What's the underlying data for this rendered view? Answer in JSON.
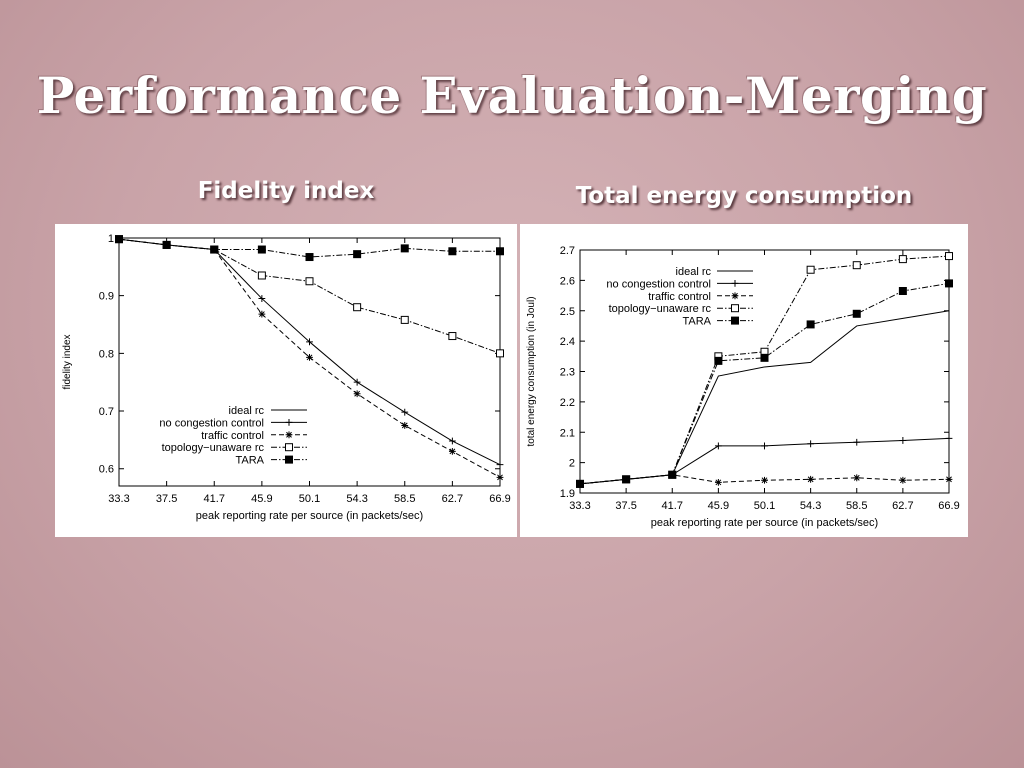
{
  "slide": {
    "title": "Performance Evaluation-Merging"
  },
  "chart_data": [
    {
      "heading": "Fidelity index",
      "type": "line",
      "xlabel": "peak reporting rate per source (in packets/sec)",
      "ylabel": "fidelity index",
      "categories": [
        "33.3",
        "37.5",
        "41.7",
        "45.9",
        "50.1",
        "54.3",
        "58.5",
        "62.7",
        "66.9"
      ],
      "ylim": [
        0.57,
        1.0
      ],
      "yticks": [
        0.6,
        0.7,
        0.8,
        0.9,
        1
      ],
      "ytick_labels": [
        "0.6",
        "0.7",
        "0.8",
        "0.9",
        "1"
      ],
      "legend_position": "bottom-left",
      "series": [
        {
          "name": "ideal rc",
          "style": "solid",
          "marker": "none",
          "values": [
            1,
            1,
            1,
            1,
            1,
            1,
            1,
            1,
            1
          ]
        },
        {
          "name": "no congestion control",
          "style": "solid",
          "marker": "plus",
          "values": [
            0.998,
            0.988,
            0.98,
            0.895,
            0.82,
            0.75,
            0.698,
            0.648,
            0.607
          ]
        },
        {
          "name": "traffic control",
          "style": "dashed",
          "marker": "star",
          "values": [
            0.998,
            0.988,
            0.98,
            0.868,
            0.793,
            0.73,
            0.675,
            0.63,
            0.585
          ]
        },
        {
          "name": "topology−unaware rc",
          "style": "dashdot",
          "marker": "square-open",
          "values": [
            0.998,
            0.988,
            0.98,
            0.935,
            0.925,
            0.88,
            0.858,
            0.83,
            0.8
          ]
        },
        {
          "name": "TARA",
          "style": "dashdot",
          "marker": "square-filled",
          "values": [
            0.998,
            0.988,
            0.98,
            0.98,
            0.967,
            0.972,
            0.982,
            0.977,
            0.977
          ]
        }
      ]
    },
    {
      "heading": "Total energy consumption",
      "type": "line",
      "xlabel": "peak reporting rate per source (in packets/sec)",
      "ylabel": "total energy consumption (in Joul)",
      "categories": [
        "33.3",
        "37.5",
        "41.7",
        "45.9",
        "50.1",
        "54.3",
        "58.5",
        "62.7",
        "66.9"
      ],
      "ylim": [
        1.9,
        2.7
      ],
      "yticks": [
        1.9,
        2.0,
        2.1,
        2.2,
        2.3,
        2.4,
        2.5,
        2.6,
        2.7
      ],
      "ytick_labels": [
        "1.9",
        "2",
        "2.1",
        "2.2",
        "2.3",
        "2.4",
        "2.5",
        "2.6",
        "2.7"
      ],
      "legend_position": "top-left",
      "series": [
        {
          "name": "ideal rc",
          "style": "solid",
          "marker": "none",
          "values": [
            1.93,
            1.945,
            1.96,
            2.285,
            2.315,
            2.33,
            2.45,
            2.475,
            2.5
          ]
        },
        {
          "name": "no congestion control",
          "style": "solid",
          "marker": "plus",
          "values": [
            1.93,
            1.945,
            1.96,
            2.055,
            2.055,
            2.062,
            2.067,
            2.073,
            2.08
          ]
        },
        {
          "name": "traffic control",
          "style": "dashed",
          "marker": "star",
          "values": [
            1.93,
            1.945,
            1.96,
            1.935,
            1.942,
            1.945,
            1.95,
            1.942,
            1.945
          ]
        },
        {
          "name": "topology−unaware rc",
          "style": "dashdot",
          "marker": "square-open",
          "values": [
            1.93,
            1.945,
            1.96,
            2.35,
            2.365,
            2.635,
            2.65,
            2.67,
            2.68
          ]
        },
        {
          "name": "TARA",
          "style": "dashdot",
          "marker": "square-filled",
          "values": [
            1.93,
            1.945,
            1.96,
            2.335,
            2.345,
            2.455,
            2.49,
            2.565,
            2.59
          ]
        }
      ]
    }
  ]
}
